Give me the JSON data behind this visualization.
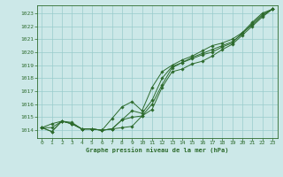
{
  "title": "Graphe pression niveau de la mer (hPa)",
  "bg_color": "#cce8e8",
  "grid_color": "#99cccc",
  "line_color": "#2d6b2d",
  "xlim": [
    -0.5,
    23.5
  ],
  "ylim": [
    1013.4,
    1023.6
  ],
  "yticks": [
    1014,
    1015,
    1016,
    1017,
    1018,
    1019,
    1020,
    1021,
    1022,
    1023
  ],
  "xticks": [
    0,
    1,
    2,
    3,
    4,
    5,
    6,
    7,
    8,
    9,
    10,
    11,
    12,
    13,
    14,
    15,
    16,
    17,
    18,
    19,
    20,
    21,
    22,
    23
  ],
  "series1": [
    1014.2,
    1013.9,
    1014.7,
    1014.6,
    1014.1,
    1014.1,
    1014.0,
    1014.1,
    1014.2,
    1014.3,
    1015.1,
    1015.6,
    1017.3,
    1018.5,
    1018.7,
    1019.1,
    1019.3,
    1019.7,
    1020.2,
    1020.6,
    1021.3,
    1022.0,
    1022.7,
    1023.3
  ],
  "series2": [
    1014.2,
    1013.9,
    1014.7,
    1014.5,
    1014.1,
    1014.1,
    1014.0,
    1014.1,
    1014.8,
    1015.0,
    1015.1,
    1016.0,
    1017.5,
    1018.8,
    1019.2,
    1019.5,
    1019.8,
    1020.0,
    1020.4,
    1020.7,
    1021.5,
    1022.1,
    1022.8,
    1023.3
  ],
  "series3": [
    1014.2,
    1014.2,
    1014.7,
    1014.5,
    1014.1,
    1014.1,
    1014.0,
    1014.1,
    1014.8,
    1015.5,
    1015.3,
    1016.3,
    1018.0,
    1018.9,
    1019.2,
    1019.6,
    1019.9,
    1020.2,
    1020.5,
    1020.8,
    1021.4,
    1022.2,
    1022.9,
    1023.3
  ],
  "series4": [
    1014.2,
    1014.5,
    1014.7,
    1014.5,
    1014.1,
    1014.1,
    1014.0,
    1014.9,
    1015.8,
    1016.2,
    1015.5,
    1017.3,
    1018.5,
    1019.0,
    1019.4,
    1019.7,
    1020.1,
    1020.5,
    1020.7,
    1021.0,
    1021.5,
    1022.3,
    1023.0,
    1023.3
  ]
}
